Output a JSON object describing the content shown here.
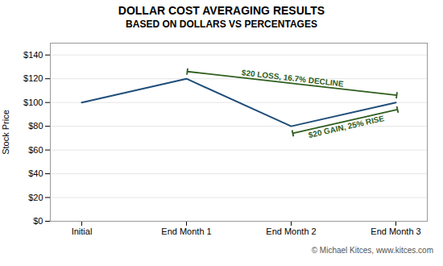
{
  "chart_data": {
    "type": "line",
    "title": "DOLLAR COST AVERAGING RESULTS",
    "subtitle": "BASED ON DOLLARS VS PERCENTAGES",
    "y_label": "Stock Price",
    "categories": [
      "Initial",
      "End Month 1",
      "End Month 2",
      "End Month 3"
    ],
    "values": [
      100,
      120,
      80,
      100
    ],
    "color": "#1F4E79",
    "ylim": [
      0,
      150
    ],
    "yticks": [
      {
        "value": 0,
        "label": "$0"
      },
      {
        "value": 20,
        "label": "$20"
      },
      {
        "value": 40,
        "label": "$40"
      },
      {
        "value": 60,
        "label": "$60"
      },
      {
        "value": 80,
        "label": "$80"
      },
      {
        "value": 100,
        "label": "$100"
      },
      {
        "value": 120,
        "label": "$120"
      },
      {
        "value": 140,
        "label": "$140"
      }
    ],
    "grid": true,
    "annotations": [
      {
        "text": "$20 LOSS, 16.7% DECLINE",
        "from": "End Month 1",
        "to": "End Month 3",
        "color": "#2E5E1E"
      },
      {
        "text": "$20 GAIN, 25% RISE",
        "from": "End Month 2",
        "to": "End Month 3",
        "color": "#2E5E1E"
      }
    ],
    "caption": [
      "© Michael Kitces, ",
      "www.kitces.com"
    ]
  }
}
